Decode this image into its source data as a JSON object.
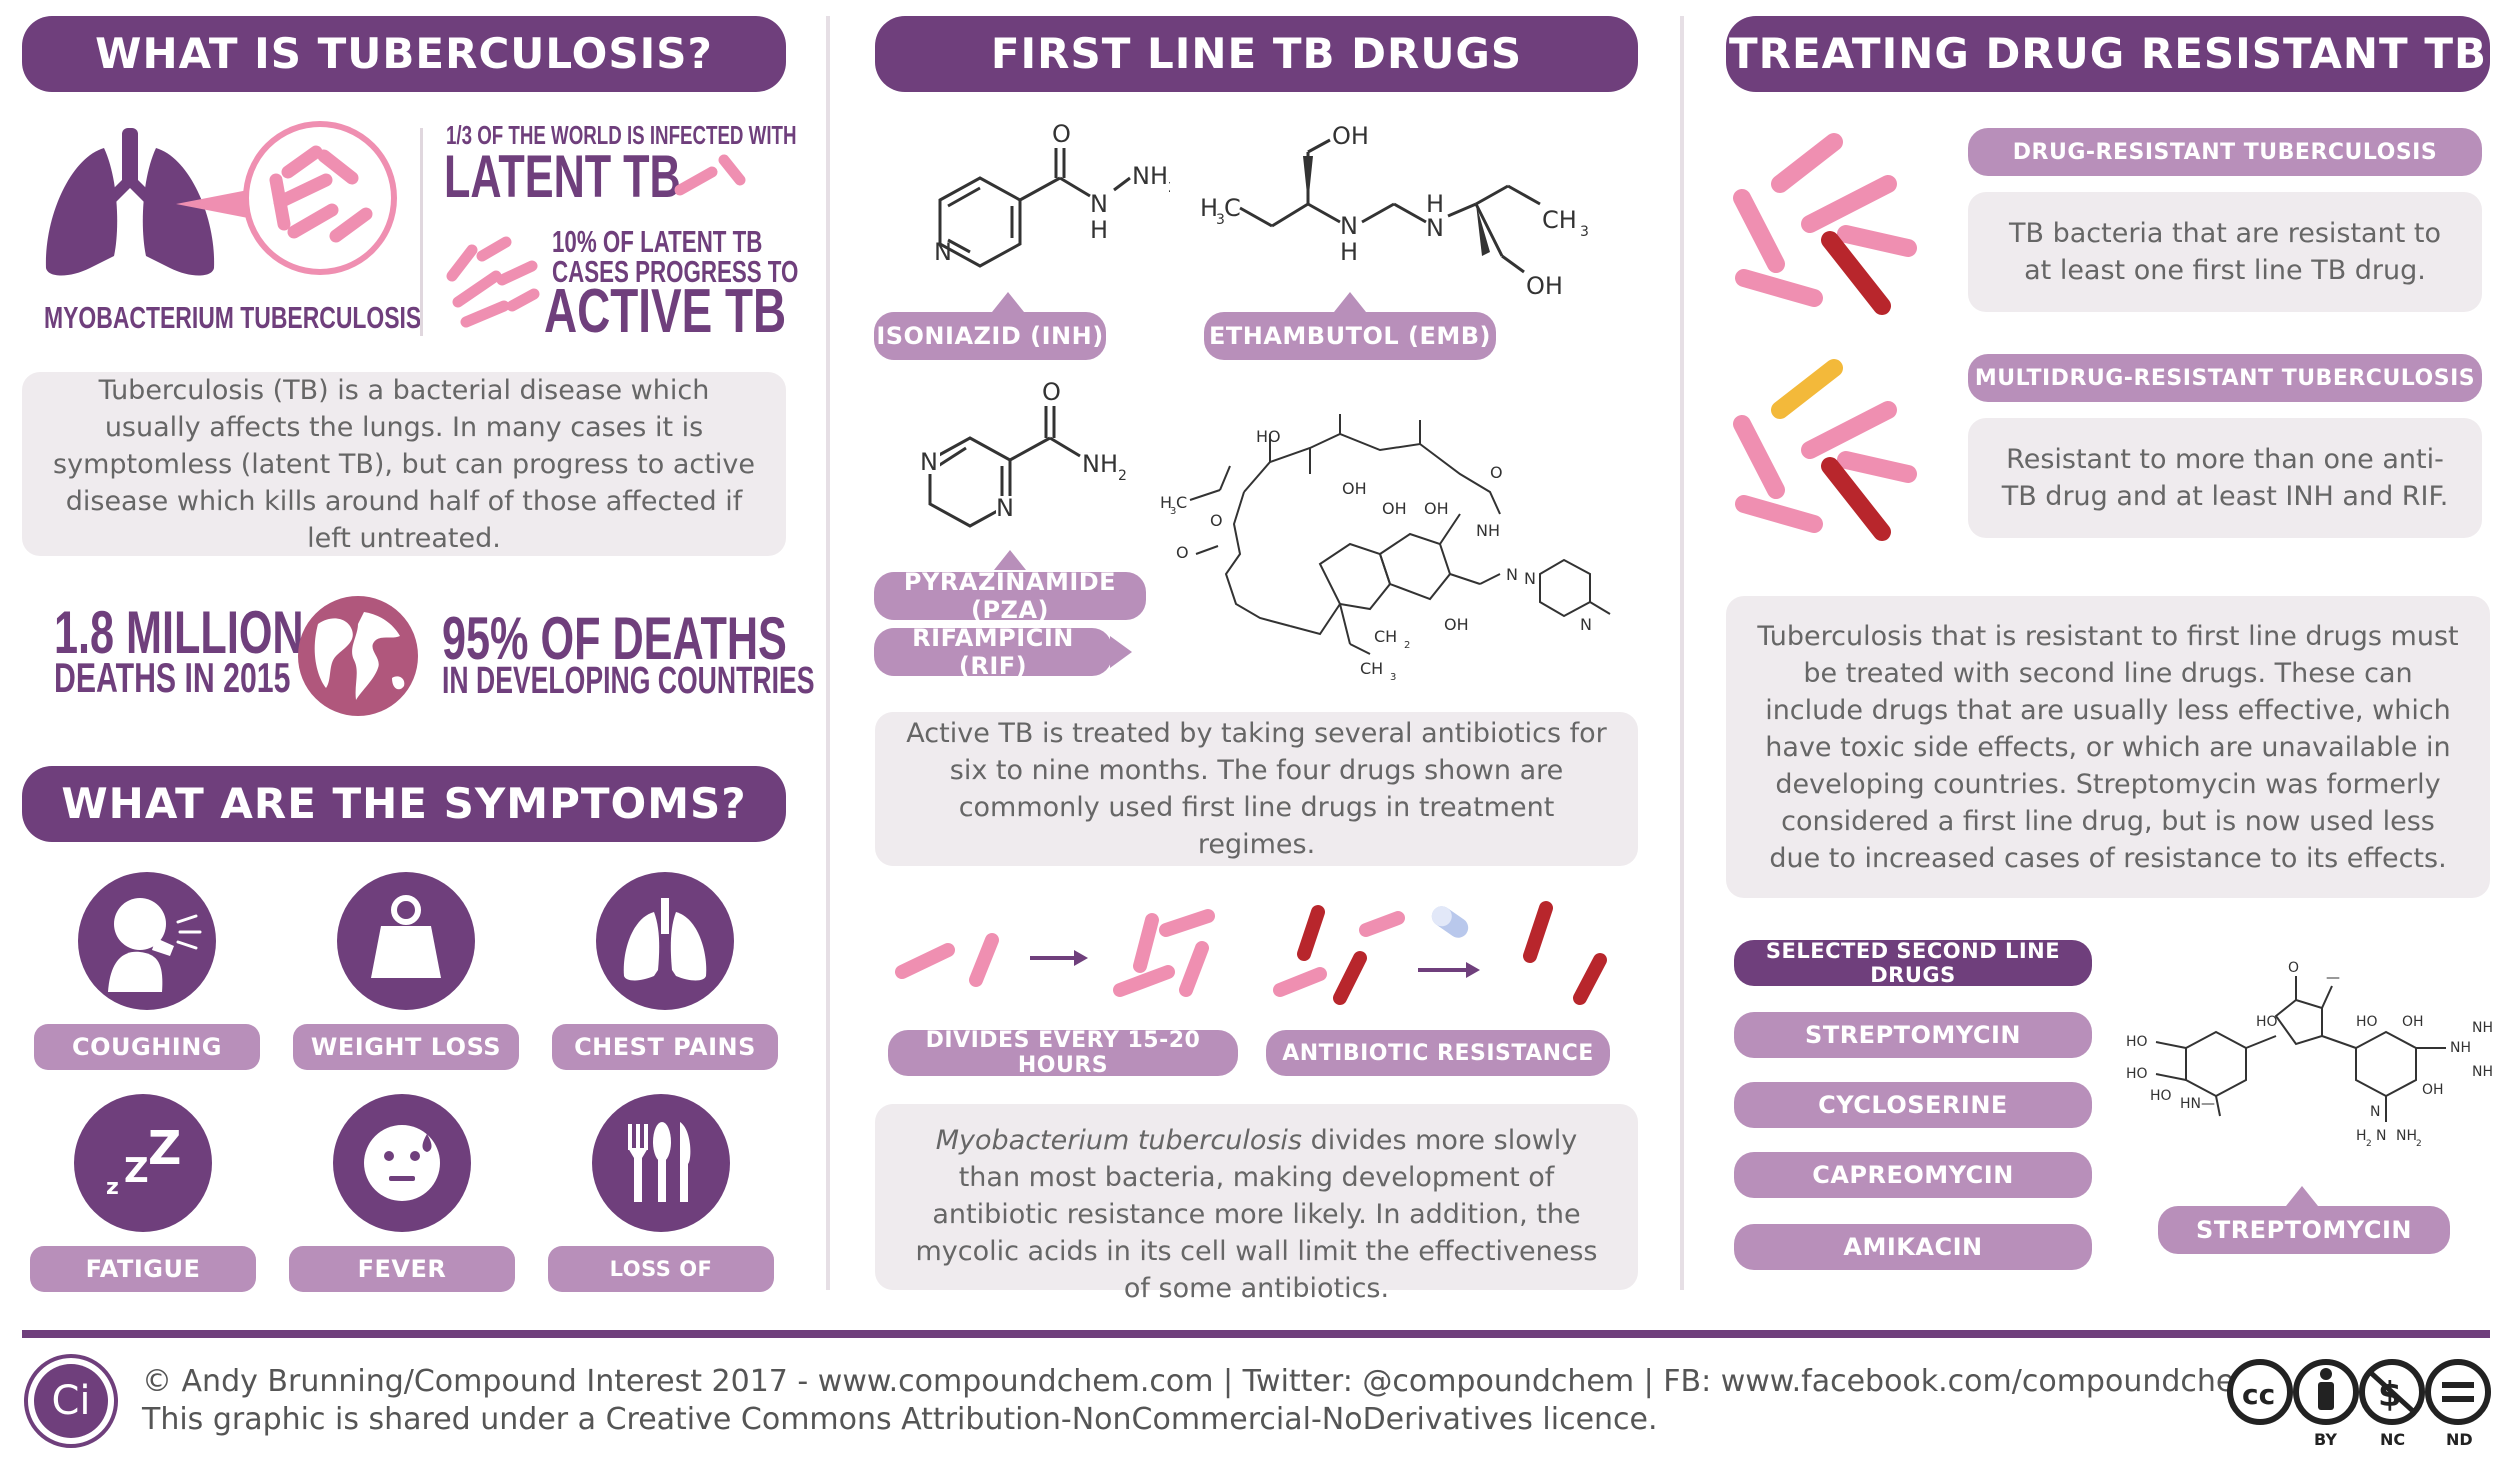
{
  "headers": {
    "what_is": "WHAT IS TUBERCULOSIS?",
    "symptoms": "WHAT ARE THE SYMPTOMS?",
    "first_line": "FIRST LINE TB DRUGS",
    "treating": "TREATING DRUG RESISTANT TB"
  },
  "what_is": {
    "bacteria_label": "MYOBACTERIUM TUBERCULOSIS",
    "latent_small": "1/3 OF THE WORLD IS INFECTED WITH",
    "latent_big": "LATENT TB",
    "active_small_1": "10% OF LATENT TB",
    "active_small_2": "CASES PROGRESS TO",
    "active_big": "ACTIVE TB",
    "description": "Tuberculosis (TB) is a bacterial disease which usually affects the lungs. In many cases it is symptomless (latent TB), but can progress to active disease which kills around half of those affected if left untreated.",
    "deaths_big": "1.8 MILLION",
    "deaths_small": "DEATHS IN 2015",
    "developing_big": "95% OF DEATHS",
    "developing_small": "IN DEVELOPING COUNTRIES"
  },
  "symptoms": [
    {
      "label": "COUGHING",
      "icon": "coughing-icon"
    },
    {
      "label": "WEIGHT LOSS",
      "icon": "weight-icon"
    },
    {
      "label": "CHEST PAINS",
      "icon": "lungs-icon"
    },
    {
      "label": "FATIGUE",
      "icon": "sleep-icon"
    },
    {
      "label": "FEVER",
      "icon": "fever-icon"
    },
    {
      "label": "LOSS OF APPETITE",
      "icon": "cutlery-icon"
    }
  ],
  "first_line": {
    "drugs": [
      "ISONIAZID (INH)",
      "ETHAMBUTOL (EMB)",
      "PYRAZINAMIDE (PZA)",
      "RIFAMPICIN (RIF)"
    ],
    "description": "Active TB is treated by taking several antibiotics for six to nine months. The four drugs shown are commonly used first line drugs in treatment regimes.",
    "divides_label": "DIVIDES EVERY 15-20 HOURS",
    "resistance_label": "ANTIBIOTIC RESISTANCE",
    "note_italic": "Myobacterium tuberculosis",
    "note_rest": " divides more slowly than most bacteria, making development of antibiotic resistance more likely. In addition, the mycolic acids in its cell wall limit the effectiveness of some antibiotics."
  },
  "treating": {
    "dr_title": "DRUG-RESISTANT TUBERCULOSIS",
    "dr_text": "TB bacteria that are resistant to at least one first line TB drug.",
    "mdr_title": "MULTIDRUG-RESISTANT TUBERCULOSIS",
    "mdr_text": "Resistant to more than one anti-TB drug and at least INH and RIF.",
    "description": "Tuberculosis that is resistant to first line drugs must be treated with second line drugs. These can include drugs that are usually less effective, which have toxic side effects, or which are unavailable in developing countries. Streptomycin was formerly considered a first line drug, but is now used less due to increased cases of resistance to its effects.",
    "second_line_title": "SELECTED SECOND LINE DRUGS",
    "second_line": [
      "STREPTOMYCIN",
      "CYCLOSERINE",
      "CAPREOMYCIN",
      "AMIKACIN"
    ],
    "structure_label": "STREPTOMYCIN"
  },
  "footer": {
    "logo": "Ci",
    "credit": "© Andy Brunning/Compound Interest 2017 - www.compoundchem.com | Twitter: @compoundchem | FB: www.facebook.com/compoundchem",
    "licence": "This graphic is shared under a Creative Commons Attribution-NonCommercial-NoDerivatives licence.",
    "cc_labels": [
      "BY",
      "NC",
      "ND"
    ]
  },
  "colors": {
    "purple": "#6f3f7c",
    "lilac": "#b88fba",
    "pink": "#ef8fb1",
    "dark_red": "#b8262c",
    "yellow": "#f3b93a",
    "box": "#efebee"
  }
}
